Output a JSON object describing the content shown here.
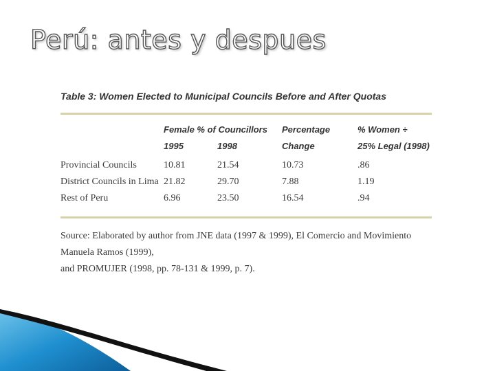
{
  "slide": {
    "title": "Perú: antes y despues"
  },
  "table": {
    "caption": "Table 3: Women Elected to Municipal Councils Before and After Quotas",
    "headers": {
      "female_pct": "Female % of Councillors",
      "y1995": "1995",
      "y1998": "1998",
      "pct_change_line1": "Percentage",
      "pct_change_line2": "Change",
      "women_legal_line1": "% Women ÷",
      "women_legal_line2": "25% Legal (1998)"
    },
    "rows": [
      {
        "label": "Provincial Councils",
        "y1995": "10.81",
        "y1998": "21.54",
        "change": "10.73",
        "ratio": ".86"
      },
      {
        "label": "District Councils in Lima",
        "y1995": "21.82",
        "y1998": "29.70",
        "change": "7.88",
        "ratio": "1.19"
      },
      {
        "label": "Rest of Peru",
        "y1995": "6.96",
        "y1998": "23.50",
        "change": "16.54",
        "ratio": ".94"
      }
    ],
    "source_line1": "Source: Elaborated by author from JNE data (1997 & 1999), El Comercio and Movimiento Manuela Ramos (1999),",
    "source_line2": "and PROMUJER (1998, pp. 78-131 & 1999, p. 7)."
  },
  "colors": {
    "accent_blue": "#1f8fcf",
    "swoosh_dark": "#111111",
    "rule": "#d7d2a8"
  }
}
